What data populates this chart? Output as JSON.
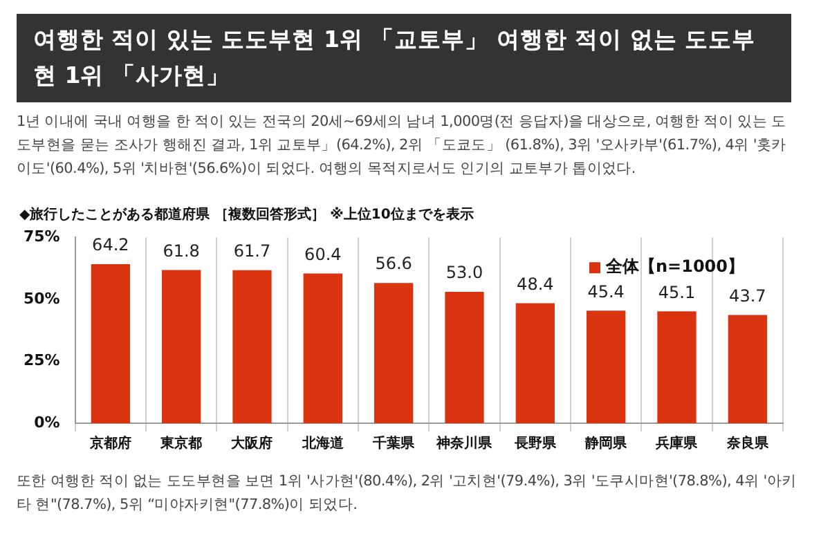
{
  "chart_data": {
    "type": "bar",
    "title": "여행한 적이 있는 도도부현 1위 「교토부」 여행한 적이 없는 도도부현 1위 「사가현」",
    "subtitle": "1년 이내에 국내 여행을 한 적이 있는 전국의 20세~69세의 남녀 1,000명(전 응답자)을 대상으로, 여행한 적이 있는 도도부현을 묻는 조사가 행해진 결과, 1위 교토부」(64.2%), 2위 「도쿄도」 (61.8%), 3위 '오사카부'(61.7%), 4위 '홋카이도'(60.4%), 5위 '치바현'(56.6%)이 되었다. 여행의 목적지로서도 인기의 교토부가 톱이었다.",
    "annotations": [
      "◆旅行したことがある都道府県 ［複数回答形式］ ※上位10位までを表示",
      "또한 여행한 적이 없는 도도부현을 보면 1위 '사가현'(80.4%), 2위 '고치현'(79.4%), 3위 '도쿠시마현'(78.8%), 4위 '아키타 현\"(78.7%), 5위 “미야자키현\"(77.8%)이 되었다."
    ],
    "categories": [
      "京都府",
      "東京都",
      "大阪府",
      "北海道",
      "千葉県",
      "神奈川県",
      "長野県",
      "静岡県",
      "兵庫県",
      "奈良県"
    ],
    "series": [
      {
        "name": "全体【n=1000】",
        "color": "#d9330f",
        "values": [
          64.2,
          61.8,
          61.7,
          60.4,
          56.6,
          53.0,
          48.4,
          45.4,
          45.1,
          43.7
        ],
        "value_labels": [
          "64.2",
          "61.8",
          "61.7",
          "60.4",
          "56.6",
          "53.0",
          "48.4",
          "45.4",
          "45.1",
          "43.7"
        ]
      }
    ],
    "ylim": [
      0,
      75
    ],
    "yticks": [
      {
        "value": 0,
        "label": "0%"
      },
      {
        "value": 25,
        "label": "25%"
      },
      {
        "value": 50,
        "label": "50%"
      },
      {
        "value": 75,
        "label": "75%"
      }
    ],
    "grid": "x",
    "legend": "top right"
  }
}
